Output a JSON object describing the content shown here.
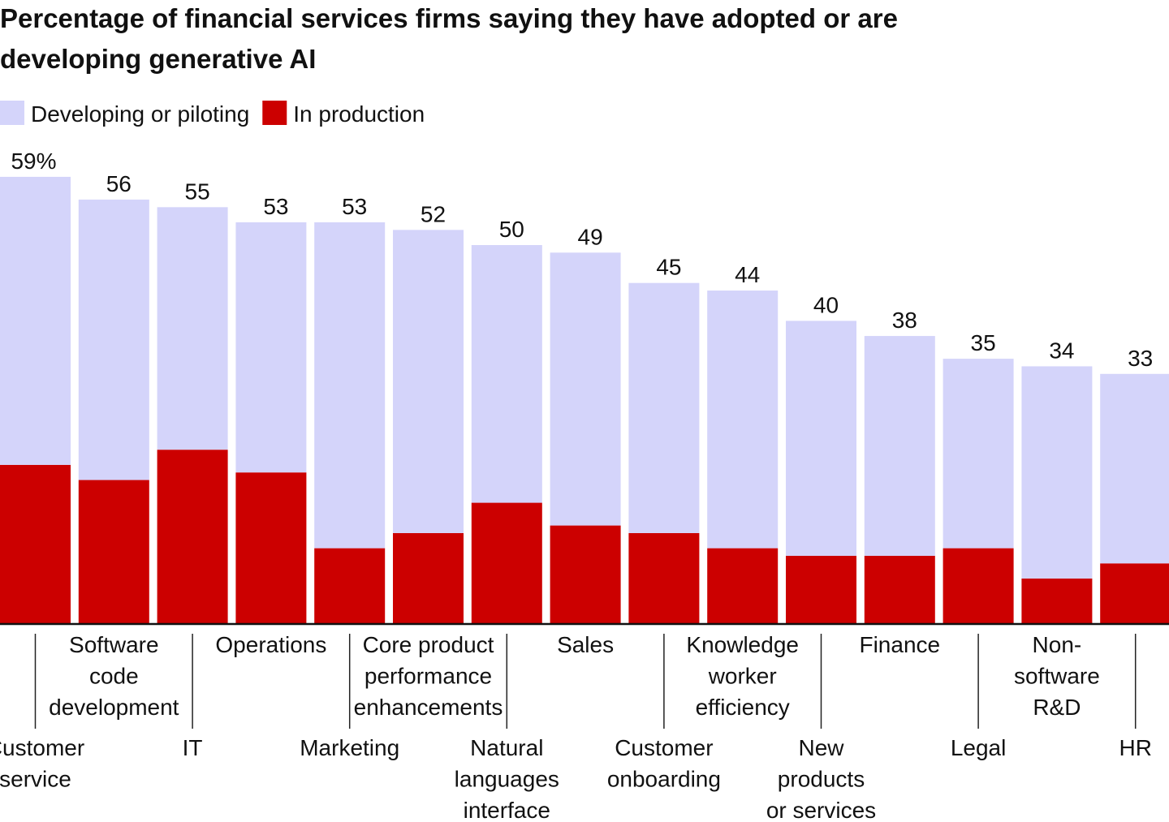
{
  "chart_data": {
    "type": "stacked-bar",
    "title": "Percentage of financial services firms saying they have adopted or are developing generative AI",
    "categories": [
      "Customer\nservice",
      "Software\ncode\ndevelopment",
      "IT",
      "Operations",
      "Marketing",
      "Core product\nperformance\nenhancements",
      "Natural\nlanguages\ninterface",
      "Sales",
      "Customer\nonboarding",
      "Knowledge\nworker\nefficiency",
      "New\nproducts\nor services",
      "Finance",
      "Legal",
      "Non-\nsoftware\nR&D",
      "HR"
    ],
    "series": [
      {
        "name": "In production",
        "color": "#cc0000",
        "values": [
          21,
          19,
          23,
          20,
          10,
          12,
          16,
          13,
          12,
          10,
          9,
          9,
          10,
          6,
          8
        ]
      },
      {
        "name": "Developing or piloting",
        "color": "#d4d4fa",
        "values": [
          38,
          37,
          32,
          33,
          43,
          40,
          34,
          36,
          33,
          34,
          31,
          29,
          25,
          28,
          25
        ]
      }
    ],
    "totals": [
      59,
      56,
      55,
      53,
      53,
      52,
      50,
      49,
      45,
      44,
      40,
      38,
      35,
      34,
      33
    ],
    "value_labels": [
      "59%",
      "56",
      "55",
      "53",
      "53",
      "52",
      "50",
      "49",
      "45",
      "44",
      "40",
      "38",
      "35",
      "34",
      "33"
    ]
  }
}
